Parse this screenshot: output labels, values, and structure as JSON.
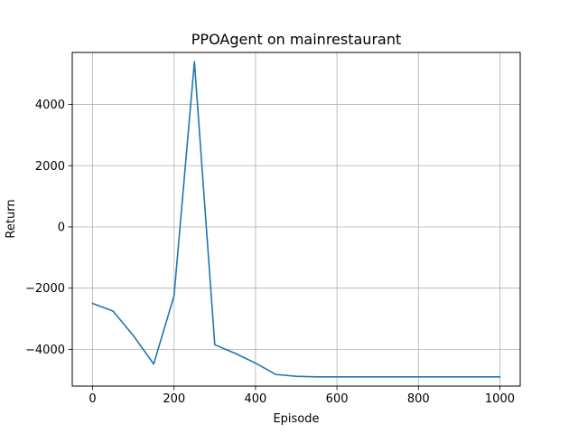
{
  "chart_data": {
    "type": "line",
    "title": "PPOAgent on mainrestaurant",
    "xlabel": "Episode",
    "ylabel": "Return",
    "xlim": [
      -50,
      1050
    ],
    "ylim": [
      -5200,
      5700
    ],
    "grid": true,
    "x_ticks": [
      0,
      200,
      400,
      600,
      800,
      1000
    ],
    "y_ticks": [
      -4000,
      -2000,
      0,
      2000,
      4000
    ],
    "x_tick_labels": [
      "0",
      "200",
      "400",
      "600",
      "800",
      "1000"
    ],
    "y_tick_labels": [
      "−4000",
      "−2000",
      "0",
      "2000",
      "4000"
    ],
    "series": [
      {
        "color": "#1f77b4",
        "x": [
          0,
          50,
          100,
          150,
          200,
          250,
          300,
          350,
          400,
          450,
          500,
          550,
          600,
          650,
          700,
          750,
          800,
          850,
          900,
          950,
          1000
        ],
        "y": [
          -2500,
          -2750,
          -3550,
          -4480,
          -2250,
          5400,
          -3850,
          -4130,
          -4450,
          -4820,
          -4880,
          -4900,
          -4900,
          -4900,
          -4900,
          -4900,
          -4900,
          -4900,
          -4900,
          -4900,
          -4900
        ]
      }
    ]
  }
}
